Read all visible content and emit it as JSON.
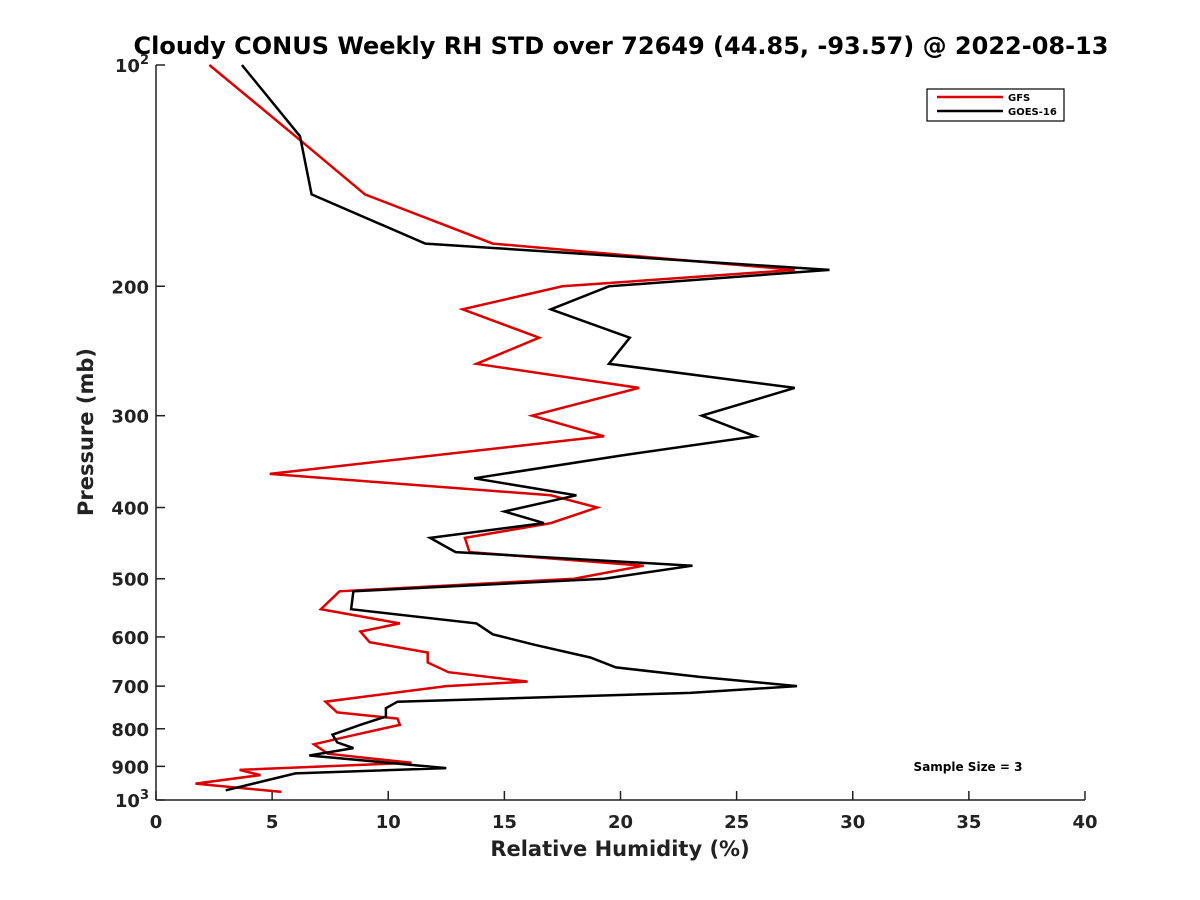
{
  "chart_data": {
    "type": "line",
    "title": "Cloudy CONUS Weekly RH STD over 72649 (44.85, -93.57) @ 2022-08-13",
    "xlabel": "Relative Humidity (%)",
    "ylabel": "Pressure (mb)",
    "xlim": [
      0,
      40
    ],
    "ylim": [
      100,
      1000
    ],
    "y_scale": "log",
    "y_reversed": true,
    "grid": false,
    "legend_position": "top-right",
    "x_ticks": [
      0,
      5,
      10,
      15,
      20,
      25,
      30,
      35,
      40
    ],
    "x_tick_labels": [
      "0",
      "5",
      "10",
      "15",
      "20",
      "25",
      "30",
      "35",
      "40"
    ],
    "y_ticks": [
      100,
      200,
      300,
      400,
      500,
      600,
      700,
      800,
      900,
      1000
    ],
    "y_tick_labels": [
      {
        "base": "10",
        "exp": "2"
      },
      {
        "base": "200"
      },
      {
        "base": "300"
      },
      {
        "base": "400"
      },
      {
        "base": "500"
      },
      {
        "base": "600"
      },
      {
        "base": "700"
      },
      {
        "base": "800"
      },
      {
        "base": "900"
      },
      {
        "base": "10",
        "exp": "3"
      }
    ],
    "annotation": "Sample Size = 3",
    "series": [
      {
        "name": "GFS",
        "color": "#dd0000",
        "points": [
          [
            2.3,
            100
          ],
          [
            6.0,
            125
          ],
          [
            9.0,
            150
          ],
          [
            14.5,
            175
          ],
          [
            27.5,
            190
          ],
          [
            17.5,
            200
          ],
          [
            13.2,
            215
          ],
          [
            16.5,
            235
          ],
          [
            13.8,
            255
          ],
          [
            20.8,
            275
          ],
          [
            16.2,
            300
          ],
          [
            19.3,
            320
          ],
          [
            4.9,
            360
          ],
          [
            17.0,
            385
          ],
          [
            19.0,
            400
          ],
          [
            17.0,
            420
          ],
          [
            13.3,
            440
          ],
          [
            13.5,
            460
          ],
          [
            21.0,
            480
          ],
          [
            18.0,
            500
          ],
          [
            7.9,
            520
          ],
          [
            7.1,
            550
          ],
          [
            10.5,
            575
          ],
          [
            8.8,
            590
          ],
          [
            9.2,
            610
          ],
          [
            11.7,
            630
          ],
          [
            11.7,
            650
          ],
          [
            12.6,
            670
          ],
          [
            16.0,
            690
          ],
          [
            12.5,
            700
          ],
          [
            7.3,
            735
          ],
          [
            7.8,
            760
          ],
          [
            10.4,
            775
          ],
          [
            10.5,
            790
          ],
          [
            8.6,
            815
          ],
          [
            6.8,
            840
          ],
          [
            7.4,
            865
          ],
          [
            11.0,
            890
          ],
          [
            3.6,
            910
          ],
          [
            4.5,
            925
          ],
          [
            1.7,
            950
          ],
          [
            5.4,
            975
          ]
        ]
      },
      {
        "name": "GOES-16",
        "color": "#000000",
        "points": [
          [
            3.7,
            100
          ],
          [
            6.2,
            125
          ],
          [
            6.7,
            150
          ],
          [
            11.6,
            175
          ],
          [
            29.0,
            190
          ],
          [
            19.5,
            200
          ],
          [
            17.0,
            215
          ],
          [
            20.4,
            235
          ],
          [
            19.5,
            255
          ],
          [
            27.5,
            275
          ],
          [
            23.5,
            300
          ],
          [
            25.8,
            320
          ],
          [
            20.0,
            340
          ],
          [
            13.7,
            365
          ],
          [
            18.1,
            385
          ],
          [
            15.0,
            405
          ],
          [
            16.7,
            420
          ],
          [
            11.8,
            440
          ],
          [
            12.9,
            460
          ],
          [
            23.1,
            480
          ],
          [
            19.3,
            500
          ],
          [
            8.5,
            520
          ],
          [
            8.4,
            550
          ],
          [
            13.8,
            575
          ],
          [
            14.5,
            595
          ],
          [
            16.3,
            615
          ],
          [
            18.7,
            640
          ],
          [
            19.8,
            660
          ],
          [
            23.4,
            680
          ],
          [
            27.6,
            700
          ],
          [
            23.0,
            715
          ],
          [
            10.4,
            735
          ],
          [
            9.9,
            750
          ],
          [
            9.9,
            770
          ],
          [
            8.8,
            790
          ],
          [
            7.6,
            815
          ],
          [
            7.8,
            835
          ],
          [
            8.5,
            850
          ],
          [
            6.6,
            870
          ],
          [
            12.5,
            905
          ],
          [
            6.0,
            920
          ],
          [
            3.0,
            970
          ]
        ]
      }
    ]
  }
}
